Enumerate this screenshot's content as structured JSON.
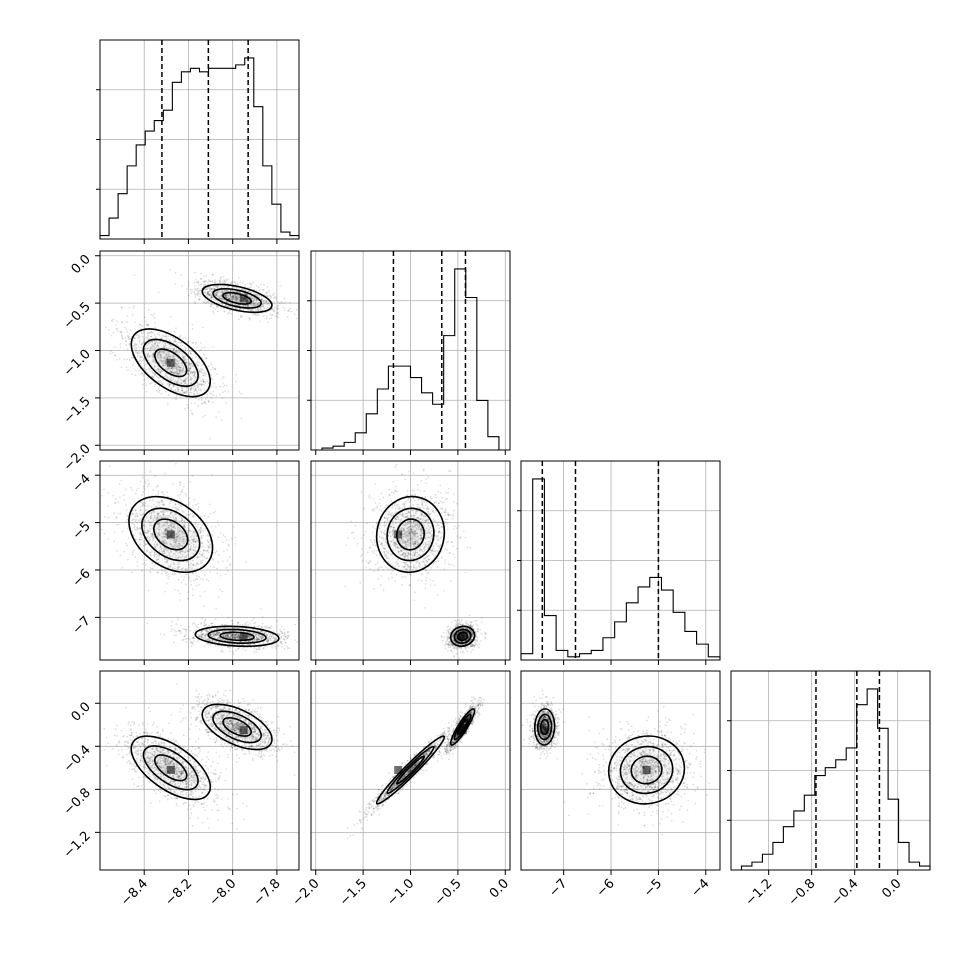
{
  "chart_data": {
    "type": "corner",
    "parameters": [
      {
        "xlim": [
          -8.6,
          -7.7
        ],
        "quantiles": [
          -8.32,
          -8.11,
          -7.93
        ],
        "ticks": [
          -8.4,
          -8.2,
          -8.0,
          -7.8
        ],
        "tick_labels": [
          "−8.4",
          "−8.2",
          "−8.0",
          "−7.8"
        ],
        "hist": [
          1,
          6,
          13,
          21,
          27,
          31,
          34,
          37,
          45,
          48,
          49,
          48,
          49,
          49,
          49,
          50,
          52,
          38,
          21,
          10,
          2,
          1
        ]
      },
      {
        "xlim": [
          -2.05,
          0.05
        ],
        "quantiles": [
          -1.18,
          -0.67,
          -0.42
        ],
        "ticks": [
          -2.0,
          -1.5,
          -1.0,
          -0.5,
          0.0
        ],
        "tick_labels": [
          "−2.0",
          "−1.5",
          "−1.0",
          "−0.5",
          "0.0"
        ],
        "hist": [
          0,
          1,
          2,
          4,
          9,
          19,
          32,
          44,
          44,
          38,
          30,
          24,
          60,
          95,
          80,
          26,
          7,
          0
        ]
      },
      {
        "xlim": [
          -7.9,
          -3.7
        ],
        "quantiles": [
          -7.45,
          -6.75,
          -5.0
        ],
        "ticks": [
          -7,
          -6,
          -5,
          -4
        ],
        "tick_labels": [
          "−7",
          "−6",
          "−5",
          "−4"
        ],
        "hist": [
          2,
          57,
          14,
          3,
          1,
          2,
          3,
          7,
          12,
          18,
          23,
          26,
          22,
          15,
          9,
          5,
          1
        ]
      },
      {
        "xlim": [
          -1.55,
          0.3
        ],
        "quantiles": [
          -0.76,
          -0.38,
          -0.17
        ],
        "ticks": [
          -1.2,
          -0.8,
          -0.4,
          0.0
        ],
        "tick_labels": [
          "−1.2",
          "−0.8",
          "−0.4",
          "0.0"
        ],
        "hist": [
          0,
          1,
          2,
          4,
          7,
          11,
          15,
          19,
          24,
          26,
          28,
          31,
          42,
          46,
          36,
          18,
          7,
          2,
          1
        ]
      }
    ],
    "row_ticks": {
      "1": {
        "values": [
          0.0,
          -0.5,
          -1.0,
          -1.5,
          -2.0
        ],
        "labels": [
          "0.0",
          "−0.5",
          "−1.0",
          "−1.5",
          "−2.0"
        ]
      },
      "2": {
        "values": [
          -4,
          -5,
          -6,
          -7
        ],
        "labels": [
          "−4",
          "−5",
          "−6",
          "−7"
        ]
      },
      "3": {
        "values": [
          0.0,
          -0.4,
          -0.8,
          -1.2
        ],
        "labels": [
          "0.0",
          "−0.4",
          "−0.8",
          "−1.2"
        ]
      }
    },
    "modes": [
      [
        -8.28,
        -1.13,
        -5.25,
        -0.62
      ],
      [
        -7.95,
        -0.45,
        -7.4,
        -0.25
      ]
    ],
    "grid": true,
    "colors": {
      "line": "#000000",
      "density": "#000000",
      "grid": "#b0b0b0",
      "background": "#ffffff"
    }
  }
}
